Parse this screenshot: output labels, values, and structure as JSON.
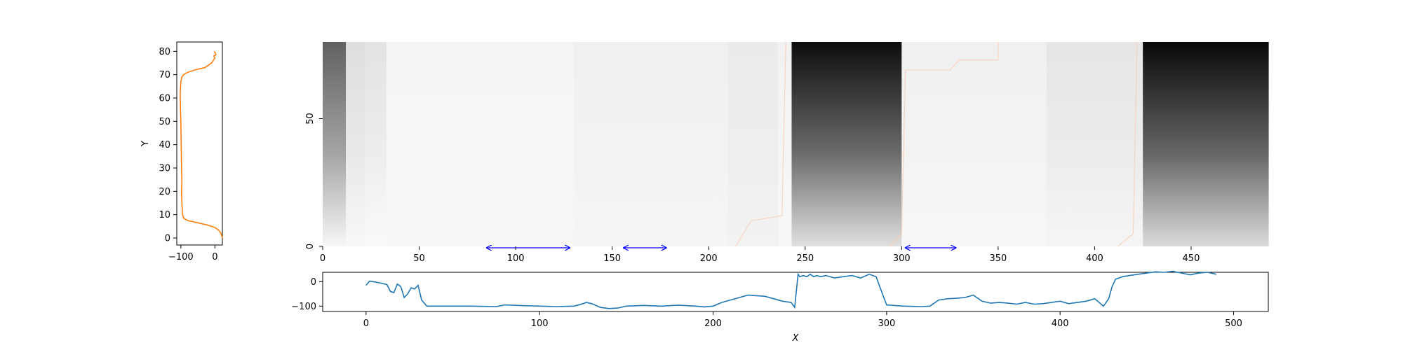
{
  "chart_data": [
    {
      "panel": "left-profile",
      "type": "line",
      "ylabel": "Y",
      "xlim": [
        -112,
        22
      ],
      "ylim": [
        -3,
        84
      ],
      "xticks": [
        -100,
        0
      ],
      "yticks": [
        0,
        10,
        20,
        30,
        40,
        50,
        60,
        70,
        80
      ],
      "series": [
        {
          "color": "#ff7f0e",
          "x": [
            22,
            18,
            10,
            0,
            -20,
            -50,
            -80,
            -92,
            -95,
            -97,
            -98,
            -97,
            -98,
            -99,
            -100,
            -101,
            -102,
            -100,
            -97,
            -92,
            -80,
            -60,
            -30,
            -10,
            0,
            -3,
            3,
            0,
            -1
          ],
          "y": [
            0,
            2,
            3.5,
            4.5,
            5.5,
            6.5,
            7.5,
            8.5,
            10,
            15,
            20,
            25,
            30,
            40,
            50,
            55,
            62,
            67,
            69,
            70,
            71,
            72,
            73,
            75,
            77,
            78,
            78.5,
            79.5,
            80
          ]
        }
      ]
    },
    {
      "panel": "heatmap",
      "type": "heatmap",
      "colormap": "greys",
      "xlim": [
        0,
        490
      ],
      "ylim": [
        0,
        80
      ],
      "xticks": [
        0,
        50,
        100,
        150,
        200,
        250,
        300,
        350,
        400,
        450
      ],
      "yticks": [
        0,
        50
      ],
      "columns": [
        {
          "x0": 0,
          "x1": 12,
          "top": 0.62,
          "bottom": 0.03
        },
        {
          "x0": 12,
          "x1": 22,
          "top": 0.13,
          "bottom": 0.03
        },
        {
          "x0": 22,
          "x1": 33,
          "top": 0.11,
          "bottom": 0.02
        },
        {
          "x0": 33,
          "x1": 130,
          "top": 0.04,
          "bottom": 0.03
        },
        {
          "x0": 130,
          "x1": 210,
          "top": 0.06,
          "bottom": 0.04
        },
        {
          "x0": 210,
          "x1": 236,
          "top": 0.08,
          "bottom": 0.05
        },
        {
          "x0": 236,
          "x1": 243,
          "top": 0.05,
          "bottom": 0.03
        },
        {
          "x0": 243,
          "x1": 300,
          "top": 0.95,
          "bottom": 0.12
        },
        {
          "x0": 300,
          "x1": 375,
          "top": 0.06,
          "bottom": 0.03
        },
        {
          "x0": 375,
          "x1": 425,
          "top": 0.1,
          "bottom": 0.04
        },
        {
          "x0": 425,
          "x1": 490,
          "top": 0.97,
          "bottom": 0.14
        }
      ],
      "boundary_lines": [
        {
          "x": [
            214,
            222,
            238,
            240
          ],
          "y": [
            0,
            10,
            12,
            80
          ]
        },
        {
          "x": [
            294,
            300,
            302,
            325,
            330,
            350,
            350
          ],
          "y": [
            0,
            5,
            69,
            69,
            73,
            73,
            80
          ]
        },
        {
          "x": [
            412,
            420,
            422
          ],
          "y": [
            0,
            5,
            80
          ]
        }
      ],
      "arrows": [
        {
          "x0": 85,
          "x1": 128,
          "y": -1
        },
        {
          "x0": 156,
          "x1": 178,
          "y": -1
        },
        {
          "x0": 302,
          "x1": 328,
          "y": -1
        }
      ]
    },
    {
      "panel": "bottom-profile",
      "type": "line",
      "xlabel": "X",
      "xlim": [
        -25,
        520
      ],
      "ylim": [
        -122,
        38
      ],
      "xticks": [
        0,
        100,
        200,
        300,
        400,
        500
      ],
      "yticks": [
        -100,
        0
      ],
      "series": [
        {
          "color": "#1f77b4",
          "x": [
            0,
            2,
            4,
            8,
            12,
            14,
            16,
            18,
            20,
            22,
            24,
            26,
            28,
            30,
            32,
            35,
            60,
            75,
            80,
            90,
            100,
            110,
            120,
            125,
            127,
            130,
            135,
            140,
            145,
            150,
            160,
            170,
            180,
            190,
            195,
            200,
            205,
            210,
            215,
            220,
            230,
            235,
            240,
            245,
            247,
            249,
            250,
            252,
            254,
            256,
            258,
            260,
            262,
            265,
            270,
            275,
            280,
            285,
            290,
            292,
            294,
            296,
            300,
            310,
            320,
            325,
            330,
            335,
            340,
            345,
            350,
            355,
            360,
            365,
            370,
            375,
            380,
            385,
            390,
            395,
            400,
            405,
            410,
            415,
            420,
            425,
            428,
            430,
            432,
            434,
            436,
            440,
            445,
            450,
            455,
            460,
            465,
            470,
            475,
            480,
            485,
            490
          ],
          "y": [
            -15,
            2,
            0,
            -5,
            -12,
            -40,
            -45,
            -10,
            -20,
            -65,
            -50,
            -25,
            -30,
            -15,
            -75,
            -100,
            -100,
            -102,
            -95,
            -98,
            -100,
            -102,
            -100,
            -90,
            -85,
            -90,
            -105,
            -110,
            -108,
            -100,
            -97,
            -100,
            -96,
            -100,
            -103,
            -100,
            -85,
            -75,
            -65,
            -55,
            -60,
            -70,
            -80,
            -85,
            -105,
            30,
            20,
            25,
            20,
            30,
            20,
            25,
            20,
            25,
            15,
            20,
            25,
            15,
            30,
            25,
            20,
            -20,
            -95,
            -100,
            -102,
            -100,
            -75,
            -70,
            -68,
            -65,
            -55,
            -80,
            -88,
            -85,
            -88,
            -92,
            -85,
            -92,
            -90,
            -85,
            -80,
            -90,
            -85,
            -80,
            -70,
            -100,
            -70,
            -20,
            10,
            15,
            20,
            25,
            30,
            35,
            40,
            38,
            42,
            35,
            28,
            35,
            38,
            30
          ]
        }
      ]
    }
  ]
}
